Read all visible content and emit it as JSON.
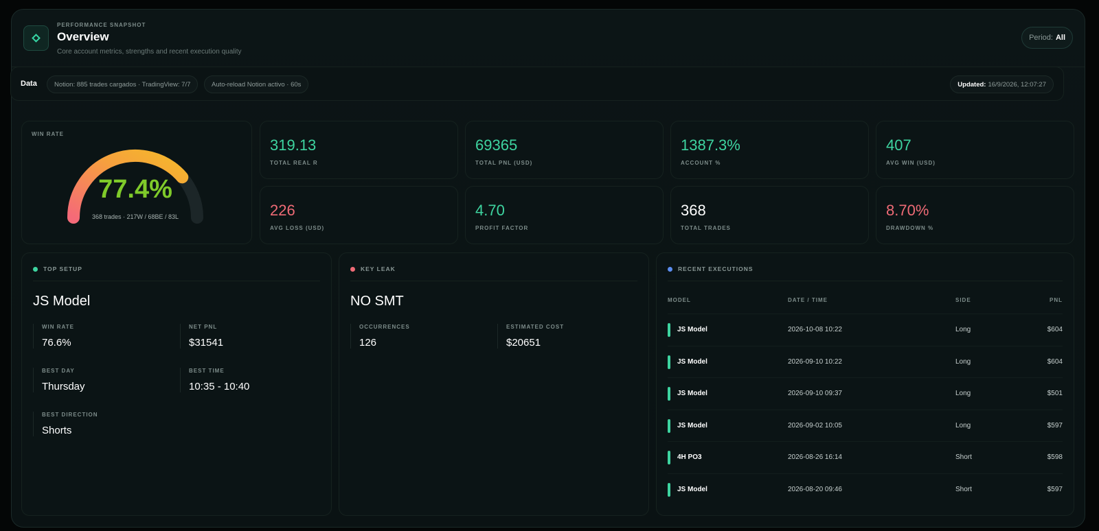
{
  "header": {
    "kicker": "PERFORMANCE SNAPSHOT",
    "title": "Overview",
    "subtitle": "Core account metrics, strengths and recent execution quality",
    "period_label": "Period:",
    "period_value": "All"
  },
  "databar": {
    "label": "Data",
    "pill1": "Notion: 885 trades cargados · TradingView: 7/7",
    "pill2": "Auto-reload Notion activo · 60s",
    "updated_label": "Updated:",
    "updated_value": "16/9/2026, 12:07:27"
  },
  "win_rate": {
    "label": "WIN RATE",
    "value": "77.4%",
    "fraction": 0.774,
    "sub": "368 trades · 217W / 68BE / 83L"
  },
  "metrics": [
    {
      "value": "319.13",
      "label": "TOTAL REAL R",
      "tone": "green"
    },
    {
      "value": "69365",
      "label": "TOTAL PNL (USD)",
      "tone": "green"
    },
    {
      "value": "1387.3%",
      "label": "ACCOUNT %",
      "tone": "green"
    },
    {
      "value": "407",
      "label": "AVG WIN (USD)",
      "tone": "green"
    },
    {
      "value": "226",
      "label": "AVG LOSS (USD)",
      "tone": "red"
    },
    {
      "value": "4.70",
      "label": "PROFIT FACTOR",
      "tone": "green"
    },
    {
      "value": "368",
      "label": "TOTAL TRADES",
      "tone": "white"
    },
    {
      "value": "8.70%",
      "label": "DRAWDOWN %",
      "tone": "red"
    }
  ],
  "top_setup": {
    "heading": "TOP SETUP",
    "name": "JS Model",
    "win_rate_label": "WIN RATE",
    "win_rate": "76.6%",
    "net_pnl_label": "NET PNL",
    "net_pnl": "$31541",
    "best_day_label": "BEST DAY",
    "best_day": "Thursday",
    "best_time_label": "BEST TIME",
    "best_time": "10:35 - 10:40",
    "best_direction_label": "BEST DIRECTION",
    "best_direction": "Shorts"
  },
  "key_leak": {
    "heading": "KEY LEAK",
    "name": "NO SMT",
    "occurrences_label": "OCCURRENCES",
    "occurrences": "126",
    "cost_label": "ESTIMATED COST",
    "cost": "$20651"
  },
  "recent": {
    "heading": "RECENT EXECUTIONS",
    "columns": {
      "model": "MODEL",
      "date": "DATE / TIME",
      "side": "SIDE",
      "pnl": "PNL"
    },
    "rows": [
      {
        "model": "JS Model",
        "date": "2026-10-08 10:22",
        "side": "Long",
        "pnl": "$604"
      },
      {
        "model": "JS Model",
        "date": "2026-09-10 10:22",
        "side": "Long",
        "pnl": "$604"
      },
      {
        "model": "JS Model",
        "date": "2026-09-10 09:37",
        "side": "Long",
        "pnl": "$501"
      },
      {
        "model": "JS Model",
        "date": "2026-09-02 10:05",
        "side": "Long",
        "pnl": "$597"
      },
      {
        "model": "4H PO3",
        "date": "2026-08-26 16:14",
        "side": "Short",
        "pnl": "$598"
      },
      {
        "model": "JS Model",
        "date": "2026-08-20 09:46",
        "side": "Short",
        "pnl": "$597"
      }
    ]
  },
  "colors": {
    "green": "#3ed4a0",
    "red": "#ef6b76",
    "blue": "#5b8def",
    "gauge": "#7fca2a"
  }
}
